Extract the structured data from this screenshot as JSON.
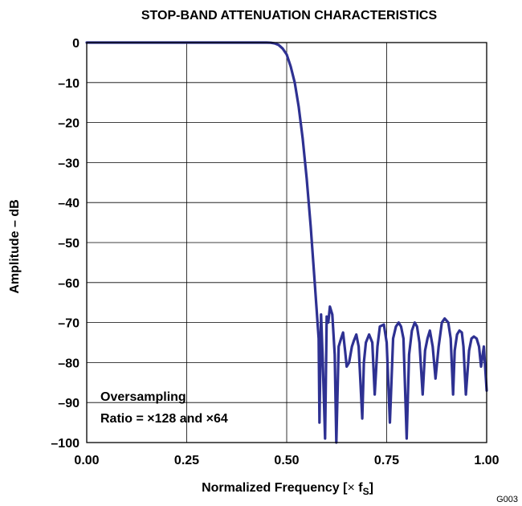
{
  "chart_data": {
    "type": "line",
    "title": "STOP-BAND ATTENUATION CHARACTERISTICS",
    "xlabel_main": "Normalized Frequency [",
    "xlabel_times": "×",
    "xlabel_f": " f",
    "xlabel_sub": "S",
    "xlabel_close": "]",
    "ylabel": "Amplitude – dB",
    "xlim": [
      0,
      1
    ],
    "ylim": [
      -100,
      0
    ],
    "x_ticks": [
      0,
      0.25,
      0.5,
      0.75,
      1.0
    ],
    "x_tick_labels": [
      "0.00",
      "0.25",
      "0.50",
      "0.75",
      "1.00"
    ],
    "y_ticks": [
      0,
      -10,
      -20,
      -30,
      -40,
      -50,
      -60,
      -70,
      -80,
      -90,
      -100
    ],
    "y_tick_labels": [
      "0",
      "–10",
      "–20",
      "–30",
      "–40",
      "–50",
      "–60",
      "–70",
      "–80",
      "–90",
      "–100"
    ],
    "grid": true,
    "annotation": [
      "Oversampling",
      "Ratio = ×128 and ×64"
    ],
    "figure_id": "G003",
    "line_color": "#2e3192",
    "series": [
      {
        "x": [
          0.0,
          0.45,
          0.46,
          0.47,
          0.48,
          0.49,
          0.5,
          0.51,
          0.52,
          0.53,
          0.54,
          0.55,
          0.56,
          0.57,
          0.58,
          0.582,
          0.586,
          0.59,
          0.596,
          0.6,
          0.604,
          0.608,
          0.614,
          0.62,
          0.624,
          0.63,
          0.636,
          0.641,
          0.646,
          0.65,
          0.656,
          0.663,
          0.668,
          0.674,
          0.68,
          0.689,
          0.693,
          0.698,
          0.706,
          0.714,
          0.72,
          0.727,
          0.733,
          0.743,
          0.75,
          0.758,
          0.766,
          0.773,
          0.78,
          0.786,
          0.792,
          0.8,
          0.806,
          0.813,
          0.82,
          0.826,
          0.832,
          0.84,
          0.846,
          0.852,
          0.858,
          0.865,
          0.872,
          0.88,
          0.888,
          0.895,
          0.904,
          0.91,
          0.916,
          0.92,
          0.926,
          0.932,
          0.938,
          0.942,
          0.948,
          0.956,
          0.962,
          0.968,
          0.975,
          0.981,
          0.986,
          0.993,
          1.0
        ],
        "y": [
          0,
          0,
          -0.05,
          -0.2,
          -0.6,
          -1.5,
          -3,
          -6,
          -10,
          -16,
          -24,
          -34,
          -46,
          -60,
          -74,
          -95,
          -68,
          -79,
          -99,
          -68.5,
          -70,
          -66,
          -68,
          -78,
          -100,
          -76,
          -74,
          -72.5,
          -77,
          -81,
          -80,
          -76,
          -74.5,
          -73,
          -76,
          -94,
          -80,
          -75,
          -73,
          -75,
          -88,
          -76,
          -71,
          -70.5,
          -75,
          -95,
          -74,
          -71,
          -70,
          -71,
          -74,
          -99,
          -78,
          -72,
          -70,
          -71,
          -75,
          -88,
          -77,
          -74,
          -72,
          -76,
          -84,
          -76,
          -70,
          -69,
          -70,
          -74,
          -88,
          -77,
          -73,
          -72,
          -72.5,
          -76,
          -88,
          -77,
          -74,
          -73.5,
          -74,
          -76,
          -81,
          -76,
          -87
        ]
      }
    ]
  }
}
